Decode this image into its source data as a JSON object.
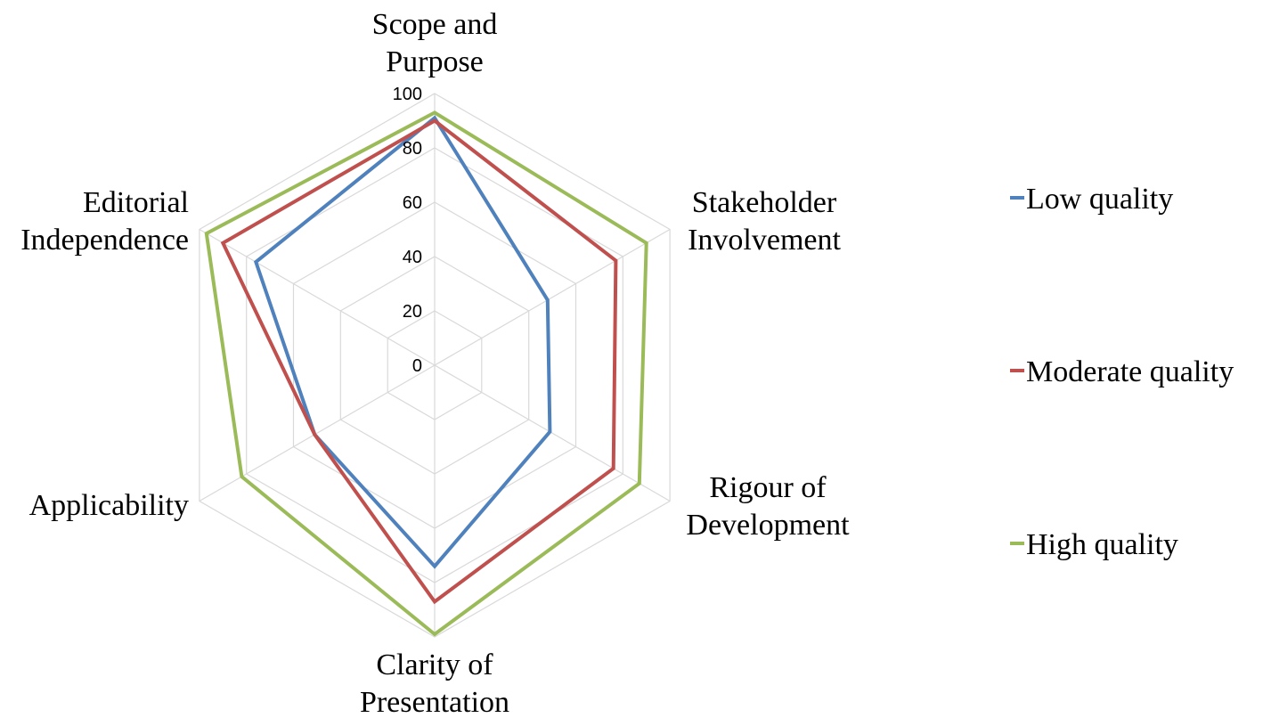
{
  "chart_data": {
    "type": "radar",
    "categories": [
      "Scope and Purpose",
      "Stakeholder Involvement",
      "Rigour of Development",
      "Clarity of Presentation",
      "Applicability",
      "Editorial Independence"
    ],
    "category_lines": [
      [
        "Scope and",
        "Purpose"
      ],
      [
        "Stakeholder",
        "Involvement"
      ],
      [
        "Rigour of",
        "Development"
      ],
      [
        "Clarity of",
        "Presentation"
      ],
      [
        "Applicability"
      ],
      [
        "Editorial",
        "Independence"
      ]
    ],
    "rlim": [
      0,
      100
    ],
    "ticks": [
      0,
      20,
      40,
      60,
      80,
      100
    ],
    "grid": true,
    "legend_position": "right",
    "series": [
      {
        "name": "Low quality",
        "color": "#4f81bd",
        "values": [
          91,
          48,
          49,
          74,
          51,
          76
        ]
      },
      {
        "name": "Moderate quality",
        "color": "#c0504d",
        "values": [
          90,
          77,
          76,
          87,
          51,
          90
        ]
      },
      {
        "name": "High quality",
        "color": "#9bbb59",
        "values": [
          93,
          90,
          87,
          99,
          82,
          97
        ]
      }
    ]
  }
}
